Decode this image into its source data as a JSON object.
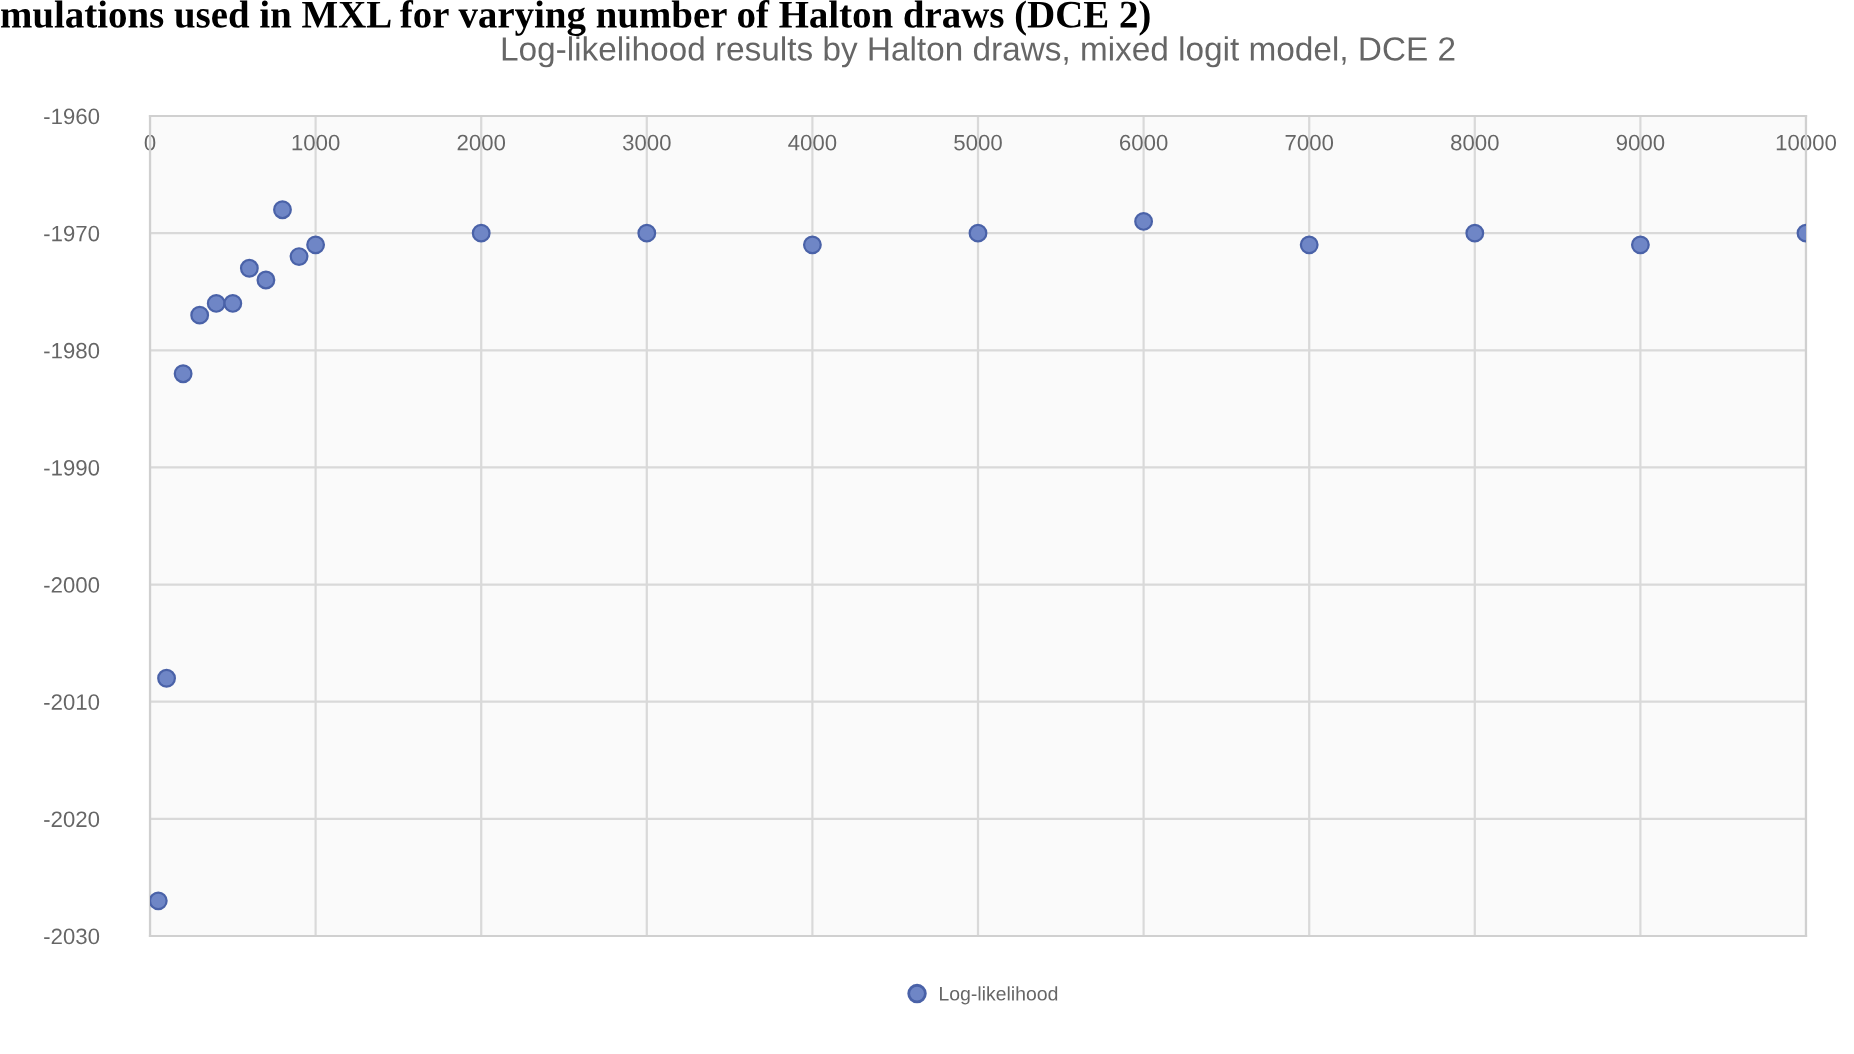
{
  "chart_data": {
    "type": "scatter",
    "title": "Log-likelihood results by Halton draws, mixed logit model, DCE 2",
    "annotations": [
      "mulations used in MXL for varying number of Halton draws (DCE 2)"
    ],
    "x": [
      50,
      100,
      200,
      300,
      400,
      500,
      600,
      700,
      800,
      900,
      1000,
      2000,
      3000,
      4000,
      5000,
      6000,
      7000,
      8000,
      9000,
      10000
    ],
    "series": [
      {
        "name": "Log-likelihood",
        "color": "#6f86c6",
        "values": [
          -2027,
          -2008,
          -1982,
          -1977,
          -1976,
          -1976,
          -1973,
          -1974,
          -1968,
          -1972,
          -1971,
          -1970,
          -1970,
          -1971,
          -1970,
          -1969,
          -1971,
          -1970,
          -1971,
          -1970
        ]
      }
    ],
    "xlim": [
      0,
      10000
    ],
    "xticks": [
      0,
      1000,
      2000,
      3000,
      4000,
      5000,
      6000,
      7000,
      8000,
      9000,
      10000
    ],
    "ylim": [
      -2030,
      -1960
    ],
    "yticks": [
      -2030,
      -2020,
      -2010,
      -2000,
      -1990,
      -1980,
      -1970,
      -1960
    ],
    "grid": true,
    "legend": "bottom",
    "marker": "circle"
  }
}
